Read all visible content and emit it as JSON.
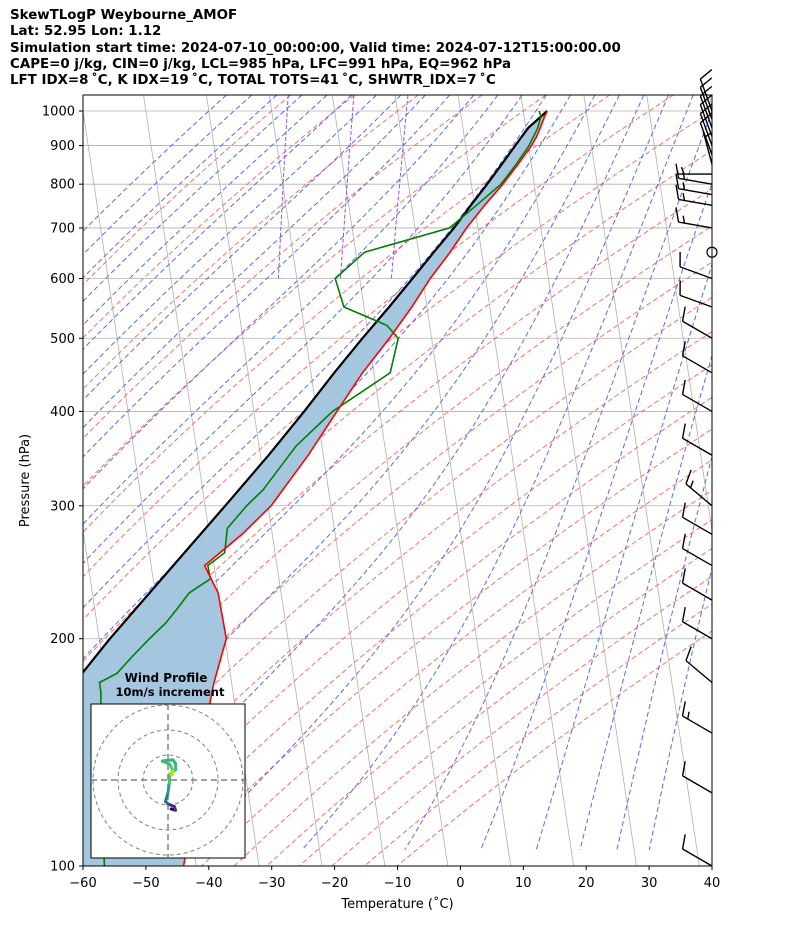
{
  "header": {
    "line1": "SkewTLogP Weybourne_AMOF",
    "line2": "Lat: 52.95   Lon: 1.12",
    "line3": "Simulation start time: 2024-07-10_00:00:00, Valid time: 2024-07-12T15:00:00.00",
    "line4": "CAPE=0 j/kg, CIN=0 j/kg, LCL=985 hPa, LFC=991 hPa, EQ=962 hPa",
    "line5": "LFT IDX=8 ˚C, K IDX=19 ˚C, TOTAL TOTS=41 ˚C, SHWTR_IDX=7 ˚C"
  },
  "chart_data": {
    "type": "line",
    "subtype": "skew-T log-P diagram",
    "xlabel": "Temperature (˚C)",
    "ylabel": "Pressure (hPa)",
    "xlim": [
      -60,
      40
    ],
    "ylim": [
      1050,
      100
    ],
    "y_scale": "log",
    "x_ticks": [
      "−60",
      "−50",
      "−40",
      "−30",
      "−20",
      "−10",
      "0",
      "10",
      "20",
      "30",
      "40"
    ],
    "x_tick_values": [
      -60,
      -50,
      -40,
      -30,
      -20,
      -10,
      0,
      10,
      20,
      30,
      40
    ],
    "y_ticks": [
      "100",
      "200",
      "300",
      "400",
      "500",
      "600",
      "700",
      "800",
      "900",
      "1000"
    ],
    "y_tick_values": [
      100,
      200,
      300,
      400,
      500,
      600,
      700,
      800,
      900,
      1000
    ],
    "grid": true,
    "colors": {
      "temperature": "#ff0000",
      "dewpoint": "#008000",
      "parcel": "#000000",
      "cape_fill": "#a4c6df",
      "dry_adiabat": "#ff6b6b",
      "moist_adiabat": "#5a66ff",
      "mixing_ratio": "#9955cc",
      "isotherm": "#b0b0b0"
    },
    "series": [
      {
        "role": "temperature",
        "pressure": [
          1000,
          985,
          950,
          925,
          900,
          850,
          800,
          750,
          700,
          650,
          600,
          550,
          500,
          450,
          400,
          350,
          300,
          275,
          250,
          230,
          200,
          175,
          150,
          125,
          100
        ],
        "temp": [
          13.8,
          13.3,
          12.3,
          11.5,
          10.5,
          7.9,
          5.0,
          1.6,
          -1.8,
          -5.0,
          -8.8,
          -12.4,
          -16.7,
          -21.8,
          -26.8,
          -32.4,
          -39.5,
          -44.8,
          -51.5,
          -50.0,
          -49.8,
          -52.8,
          -55.6,
          -58.2,
          -62.0
        ]
      },
      {
        "role": "dewpoint",
        "pressure": [
          1000,
          985,
          950,
          900,
          850,
          800,
          750,
          700,
          650,
          600,
          550,
          520,
          500,
          450,
          400,
          360,
          340,
          315,
          300,
          280,
          260,
          250,
          240,
          230,
          220,
          210,
          200,
          190,
          180,
          175,
          170,
          160,
          150,
          140,
          125,
          110,
          100
        ],
        "temp": [
          12.5,
          12.7,
          11.9,
          10.1,
          7.6,
          4.7,
          0.3,
          -4.5,
          -18.6,
          -23.9,
          -23.2,
          -16.8,
          -15.3,
          -17.4,
          -27.5,
          -34.1,
          -36.8,
          -40.4,
          -43.4,
          -47.0,
          -48.0,
          -51.0,
          -50.9,
          -54.6,
          -56.7,
          -59.0,
          -62.0,
          -65.0,
          -68.0,
          -71.0,
          -71.0,
          -71.5,
          -72.5,
          -73.0,
          -73.5,
          -74.0,
          -74.6
        ]
      },
      {
        "role": "parcel",
        "pressure": [
          1000,
          950,
          900,
          850,
          800,
          750,
          700,
          650,
          600,
          550,
          500,
          450,
          400,
          350,
          300,
          250,
          200,
          150,
          100
        ],
        "temp": [
          13.8,
          10.4,
          7.9,
          5.3,
          2.5,
          -0.6,
          -3.8,
          -7.6,
          -11.6,
          -16.0,
          -21.0,
          -26.3,
          -32.0,
          -38.7,
          -46.8,
          -56.5,
          -68.3,
          -82.6,
          -100.0
        ]
      }
    ],
    "cape_region": "shaded between temperature and parcel curves",
    "wind_barbs": {
      "pressure": [
        1000,
        975,
        950,
        925,
        900,
        875,
        850,
        825,
        800,
        775,
        750,
        700,
        650,
        600,
        550,
        500,
        450,
        400,
        350,
        300,
        275,
        250,
        225,
        200,
        175,
        150,
        125,
        100
      ],
      "speed_kt": [
        10,
        10,
        10,
        10,
        10,
        10,
        5,
        5,
        15,
        15,
        15,
        15,
        0,
        10,
        10,
        10,
        10,
        10,
        10,
        15,
        10,
        10,
        10,
        10,
        10,
        15,
        10,
        10
      ],
      "direction_deg": [
        340,
        340,
        340,
        340,
        340,
        340,
        345,
        270,
        280,
        280,
        280,
        280,
        0,
        290,
        290,
        300,
        300,
        300,
        300,
        310,
        300,
        300,
        300,
        300,
        310,
        300,
        300,
        300
      ]
    },
    "inset": {
      "title": "Wind Profile",
      "subtitle": "10m/s increment",
      "type": "hodograph",
      "rings": 3,
      "points": [
        {
          "u": 0.5,
          "v": -4.6,
          "color": "#440154"
        },
        {
          "u": 1.2,
          "v": -4.8,
          "color": "#440154"
        },
        {
          "u": 1.0,
          "v": -4.2,
          "color": "#46327e"
        },
        {
          "u": 0.0,
          "v": -3.8,
          "color": "#46327e"
        },
        {
          "u": -0.4,
          "v": -3.4,
          "color": "#365c8d"
        },
        {
          "u": 0.0,
          "v": -2.0,
          "color": "#277f8e"
        },
        {
          "u": 0.2,
          "v": -0.5,
          "color": "#1fa187"
        },
        {
          "u": 0.3,
          "v": 1.0,
          "color": "#4ac16d"
        },
        {
          "u": 1.2,
          "v": 1.6,
          "color": "#3fbc73"
        },
        {
          "u": 1.2,
          "v": 2.6,
          "color": "#3fbc73"
        },
        {
          "u": 0.8,
          "v": 3.2,
          "color": "#2fb47c"
        },
        {
          "u": -0.3,
          "v": 3.1,
          "color": "#2fb47c"
        },
        {
          "u": -0.9,
          "v": 3.0,
          "color": "#2fb47c"
        },
        {
          "u": 0.3,
          "v": 2.5,
          "color": "#3fbc73"
        },
        {
          "u": 0.8,
          "v": 1.4,
          "color": "#4ac16d"
        },
        {
          "u": 0.6,
          "v": 1.0,
          "color": "#bddf26"
        }
      ]
    }
  }
}
